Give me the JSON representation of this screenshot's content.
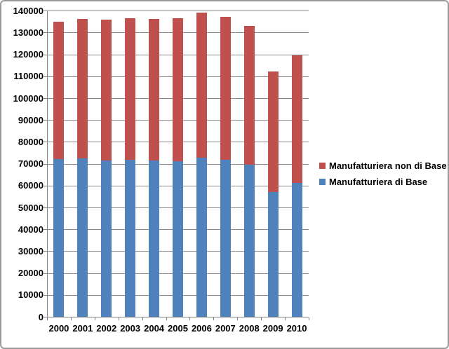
{
  "chart_data": {
    "type": "bar",
    "stacked": true,
    "title": "",
    "xlabel": "",
    "ylabel": "",
    "categories": [
      "2000",
      "2001",
      "2002",
      "2003",
      "2004",
      "2005",
      "2006",
      "2007",
      "2008",
      "2009",
      "2010"
    ],
    "series": [
      {
        "name": "Manufatturiera di Base",
        "color": "#4F81BD",
        "values": [
          72400,
          72700,
          71600,
          71900,
          71600,
          71300,
          72900,
          71900,
          69700,
          57300,
          61300
        ]
      },
      {
        "name": "Manufatturiera non di Base",
        "color": "#C0504D",
        "values": [
          62600,
          63800,
          64400,
          64900,
          64700,
          65500,
          66400,
          65400,
          63600,
          54900,
          58400
        ]
      }
    ],
    "totals": [
      135000,
      136500,
      136000,
      136800,
      136300,
      136800,
      139300,
      137300,
      133300,
      112200,
      119700
    ],
    "ylim": [
      0,
      140000
    ],
    "ytick_step": 10000,
    "y_ticks": [
      "0",
      "10000",
      "20000",
      "30000",
      "40000",
      "50000",
      "60000",
      "70000",
      "80000",
      "90000",
      "100000",
      "110000",
      "120000",
      "130000",
      "140000"
    ],
    "grid": true,
    "legend_position": "right",
    "legend_order": [
      1,
      0
    ]
  },
  "colors": {
    "gridline": "#8a8a8a",
    "axis": "#808080",
    "text": "#000000",
    "frame_border": "#9a9a9a",
    "background": "#ffffff"
  }
}
